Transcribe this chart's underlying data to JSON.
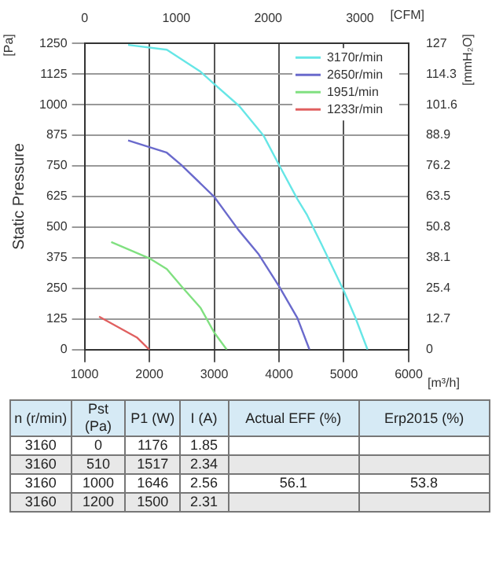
{
  "chart_data": [
    {
      "type": "line",
      "xlabel": "[m³/h]",
      "ylabel": "Static Pressure",
      "y2label": "[mmH₂O]",
      "x2label": "[CFM]",
      "annotations": [
        "[Pa]"
      ],
      "xlim": [
        1000,
        6000
      ],
      "xticks": [
        1000,
        2000,
        3000,
        4000,
        5000,
        6000
      ],
      "x2lim": [
        0,
        3531
      ],
      "x2ticks": [
        0,
        1000,
        2000,
        3000
      ],
      "ylim": [
        0,
        1250
      ],
      "yticks": [
        0,
        125,
        250,
        375,
        500,
        625,
        750,
        875,
        1000,
        1125,
        1250
      ],
      "y2lim": [
        0,
        127
      ],
      "y2ticks": [
        0,
        12.7,
        25.4,
        38.1,
        50.8,
        63.5,
        76.2,
        88.9,
        101.6,
        114.3,
        127
      ],
      "grid": true,
      "legend": "top right",
      "marker": "none",
      "line_style": "solid",
      "series": [
        {
          "name": "3170r/min",
          "color": "#66e6e6",
          "x": [
            1672,
            2269,
            2791,
            3000,
            3388,
            3761,
            4000,
            4284,
            4434,
            4657,
            5000,
            5179,
            5366
          ],
          "values": [
            1244,
            1224,
            1134,
            1084,
            994,
            874,
            754,
            614,
            549,
            429,
            240,
            130,
            0
          ]
        },
        {
          "name": "2650r/min",
          "color": "#6a6acc",
          "x": [
            1672,
            2269,
            2493,
            3000,
            3373,
            3687,
            4000,
            4284,
            4470
          ],
          "values": [
            854,
            804,
            754,
            624,
            489,
            389,
            259,
            129,
            0
          ]
        },
        {
          "name": "1951/min",
          "color": "#80e080",
          "x": [
            1411,
            2000,
            2269,
            2493,
            2791,
            3000,
            3194
          ],
          "values": [
            439,
            373,
            329,
            259,
            170,
            70,
            0
          ]
        },
        {
          "name": "1233r/min",
          "color": "#e06060",
          "x": [
            1224,
            1806,
            2000
          ],
          "values": [
            135,
            50,
            0
          ]
        }
      ]
    },
    {
      "type": "other",
      "categories": [
        "n (r/min)",
        "Pst (Pa)",
        "P1 (W)",
        "I (A)",
        "Actual EFF (%)",
        "Erp2015 (%)"
      ],
      "cell_labels": [
        [
          "3160",
          "0",
          "1176",
          "1.85",
          null,
          null
        ],
        [
          "3160",
          "510",
          "1517",
          "2.34",
          null,
          null
        ],
        [
          "3160",
          "1000",
          "1646",
          "2.56",
          "56.1",
          "53.8"
        ],
        [
          "3160",
          "1200",
          "1500",
          "2.31",
          null,
          null
        ]
      ]
    }
  ]
}
